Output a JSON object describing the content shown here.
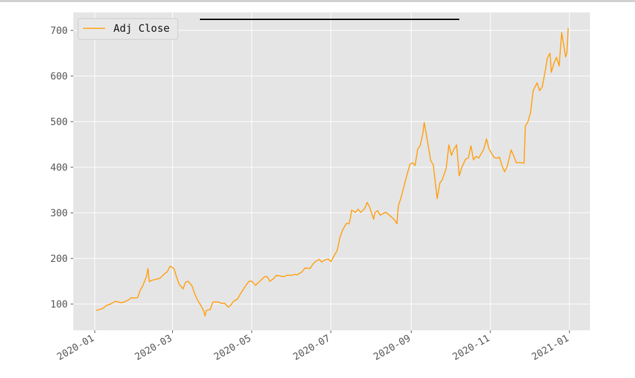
{
  "chart_data": {
    "type": "line",
    "legend": {
      "entries": [
        "Adj Close"
      ],
      "placement": "top-left"
    },
    "title": "",
    "xlabel": "",
    "ylabel": "",
    "grid": true,
    "xlim": [
      "2020-01-01",
      "2020-12-31"
    ],
    "ylim": [
      40,
      720
    ],
    "x_ticks": [
      "2020-01",
      "2020-03",
      "2020-05",
      "2020-07",
      "2020-09",
      "2020-11",
      "2021-01"
    ],
    "y_ticks": [
      100,
      200,
      300,
      400,
      500,
      600,
      700
    ],
    "series": [
      {
        "name": "Adj Close",
        "color": "#ff9f0f",
        "points": [
          [
            "2020-01-02",
            86
          ],
          [
            "2020-01-06",
            89
          ],
          [
            "2020-01-08",
            92
          ],
          [
            "2020-01-10",
            97
          ],
          [
            "2020-01-13",
            100
          ],
          [
            "2020-01-15",
            103
          ],
          [
            "2020-01-17",
            106
          ],
          [
            "2020-01-21",
            103
          ],
          [
            "2020-01-23",
            104
          ],
          [
            "2020-01-27",
            109
          ],
          [
            "2020-01-29",
            114
          ],
          [
            "2020-01-31",
            113
          ],
          [
            "2020-02-03",
            114
          ],
          [
            "2020-02-05",
            130
          ],
          [
            "2020-02-07",
            140
          ],
          [
            "2020-02-10",
            162
          ],
          [
            "2020-02-11",
            178
          ],
          [
            "2020-02-12",
            149
          ],
          [
            "2020-02-14",
            152
          ],
          [
            "2020-02-18",
            155
          ],
          [
            "2020-02-20",
            156
          ],
          [
            "2020-02-24",
            167
          ],
          [
            "2020-02-26",
            171
          ],
          [
            "2020-02-28",
            183
          ],
          [
            "2020-03-02",
            178
          ],
          [
            "2020-03-04",
            160
          ],
          [
            "2020-03-06",
            144
          ],
          [
            "2020-03-09",
            133
          ],
          [
            "2020-03-11",
            148
          ],
          [
            "2020-03-13",
            150
          ],
          [
            "2020-03-16",
            140
          ],
          [
            "2020-03-18",
            123
          ],
          [
            "2020-03-20",
            110
          ],
          [
            "2020-03-23",
            96
          ],
          [
            "2020-03-25",
            85
          ],
          [
            "2020-03-26",
            74
          ],
          [
            "2020-03-27",
            86
          ],
          [
            "2020-03-30",
            88
          ],
          [
            "2020-04-01",
            104
          ],
          [
            "2020-04-03",
            105
          ],
          [
            "2020-04-06",
            104
          ],
          [
            "2020-04-08",
            101
          ],
          [
            "2020-04-10",
            102
          ],
          [
            "2020-04-13",
            93
          ],
          [
            "2020-04-15",
            98
          ],
          [
            "2020-04-17",
            106
          ],
          [
            "2020-04-20",
            111
          ],
          [
            "2020-04-22",
            121
          ],
          [
            "2020-04-24",
            130
          ],
          [
            "2020-04-27",
            143
          ],
          [
            "2020-04-29",
            150
          ],
          [
            "2020-05-01",
            150
          ],
          [
            "2020-05-04",
            141
          ],
          [
            "2020-05-06",
            147
          ],
          [
            "2020-05-08",
            152
          ],
          [
            "2020-05-11",
            160
          ],
          [
            "2020-05-13",
            160
          ],
          [
            "2020-05-15",
            150
          ],
          [
            "2020-05-18",
            156
          ],
          [
            "2020-05-20",
            163
          ],
          [
            "2020-05-22",
            162
          ],
          [
            "2020-05-26",
            160
          ],
          [
            "2020-05-28",
            163
          ],
          [
            "2020-06-01",
            163
          ],
          [
            "2020-06-03",
            165
          ],
          [
            "2020-06-05",
            164
          ],
          [
            "2020-06-09",
            171
          ],
          [
            "2020-06-11",
            179
          ],
          [
            "2020-06-15",
            178
          ],
          [
            "2020-06-17",
            187
          ],
          [
            "2020-06-19",
            193
          ],
          [
            "2020-06-22",
            198
          ],
          [
            "2020-06-24",
            192
          ],
          [
            "2020-06-26",
            196
          ],
          [
            "2020-06-29",
            199
          ],
          [
            "2020-07-01",
            193
          ],
          [
            "2020-07-03",
            203
          ],
          [
            "2020-07-06",
            218
          ],
          [
            "2020-07-08",
            246
          ],
          [
            "2020-07-10",
            262
          ],
          [
            "2020-07-13",
            277
          ],
          [
            "2020-07-15",
            276
          ],
          [
            "2020-07-16",
            287
          ],
          [
            "2020-07-17",
            306
          ],
          [
            "2020-07-20",
            301
          ],
          [
            "2020-07-22",
            308
          ],
          [
            "2020-07-24",
            301
          ],
          [
            "2020-07-27",
            309
          ],
          [
            "2020-07-29",
            323
          ],
          [
            "2020-07-31",
            312
          ],
          [
            "2020-08-03",
            286
          ],
          [
            "2020-08-04",
            300
          ],
          [
            "2020-08-06",
            305
          ],
          [
            "2020-08-08",
            295
          ],
          [
            "2020-08-10",
            298
          ],
          [
            "2020-08-12",
            301
          ],
          [
            "2020-08-14",
            298
          ],
          [
            "2020-08-17",
            290
          ],
          [
            "2020-08-19",
            285
          ],
          [
            "2020-08-21",
            276
          ],
          [
            "2020-08-22",
            315
          ],
          [
            "2020-08-24",
            332
          ],
          [
            "2020-08-26",
            354
          ],
          [
            "2020-08-28",
            376
          ],
          [
            "2020-08-31",
            406
          ],
          [
            "2020-09-02",
            410
          ],
          [
            "2020-09-04",
            404
          ],
          [
            "2020-09-06",
            440
          ],
          [
            "2020-09-08",
            448
          ],
          [
            "2020-09-10",
            475
          ],
          [
            "2020-09-11",
            498
          ],
          [
            "2020-09-14",
            449
          ],
          [
            "2020-09-16",
            415
          ],
          [
            "2020-09-18",
            405
          ],
          [
            "2020-09-21",
            331
          ],
          [
            "2020-09-23",
            365
          ],
          [
            "2020-09-25",
            373
          ],
          [
            "2020-09-28",
            398
          ],
          [
            "2020-09-30",
            449
          ],
          [
            "2020-10-02",
            426
          ],
          [
            "2020-10-04",
            440
          ],
          [
            "2020-10-06",
            449
          ],
          [
            "2020-10-08",
            381
          ],
          [
            "2020-10-10",
            400
          ],
          [
            "2020-10-13",
            418
          ],
          [
            "2020-10-15",
            420
          ],
          [
            "2020-10-17",
            447
          ],
          [
            "2020-10-19",
            416
          ],
          [
            "2020-10-21",
            424
          ],
          [
            "2020-10-23",
            420
          ],
          [
            "2020-10-25",
            430
          ],
          [
            "2020-10-27",
            440
          ],
          [
            "2020-10-29",
            462
          ],
          [
            "2020-10-31",
            440
          ],
          [
            "2020-11-02",
            430
          ],
          [
            "2020-11-04",
            421
          ],
          [
            "2020-11-06",
            420
          ],
          [
            "2020-11-08",
            422
          ],
          [
            "2020-11-10",
            403
          ],
          [
            "2020-11-12",
            390
          ],
          [
            "2020-11-14",
            402
          ],
          [
            "2020-11-16",
            425
          ],
          [
            "2020-11-17",
            438
          ],
          [
            "2020-11-19",
            425
          ],
          [
            "2020-11-21",
            410
          ],
          [
            "2020-11-24",
            410
          ],
          [
            "2020-11-27",
            409
          ],
          [
            "2020-11-28",
            490
          ],
          [
            "2020-11-30",
            500
          ],
          [
            "2020-12-02",
            520
          ],
          [
            "2020-12-04",
            568
          ],
          [
            "2020-12-07",
            585
          ],
          [
            "2020-12-09",
            568
          ],
          [
            "2020-12-11",
            576
          ],
          [
            "2020-12-13",
            606
          ],
          [
            "2020-12-15",
            640
          ],
          [
            "2020-12-17",
            650
          ],
          [
            "2020-12-18",
            608
          ],
          [
            "2020-12-20",
            628
          ],
          [
            "2020-12-22",
            641
          ],
          [
            "2020-12-24",
            622
          ],
          [
            "2020-12-26",
            695
          ],
          [
            "2020-12-28",
            660
          ],
          [
            "2020-12-29",
            642
          ],
          [
            "2020-12-30",
            650
          ],
          [
            "2020-12-31",
            705
          ]
        ]
      }
    ]
  }
}
